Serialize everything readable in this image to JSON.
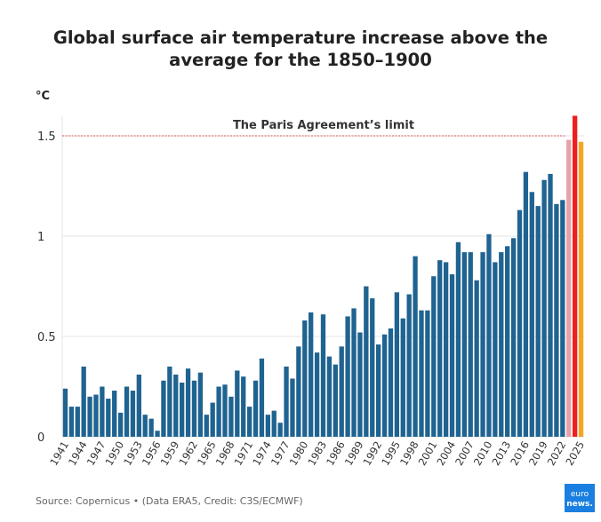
{
  "chart_data": {
    "type": "bar",
    "title": "Global surface air temperature increase above the average for the 1850–1900",
    "title_lines": [
      "Global surface air temperature increase above the",
      "average for the 1850–1900"
    ],
    "ylabel": "°C",
    "xlabel": "",
    "ylim": [
      0,
      1.6
    ],
    "yticks": [
      0,
      0.5,
      1,
      1.5
    ],
    "ytick_labels": [
      "0",
      "0.5",
      "1",
      "1.5"
    ],
    "grid": true,
    "x_start": 1941,
    "x_end": 2025,
    "xtick_step": 3,
    "values": [
      0.24,
      0.15,
      0.15,
      0.35,
      0.2,
      0.21,
      0.25,
      0.19,
      0.23,
      0.12,
      0.25,
      0.23,
      0.31,
      0.11,
      0.09,
      0.03,
      0.28,
      0.35,
      0.31,
      0.27,
      0.34,
      0.28,
      0.32,
      0.11,
      0.17,
      0.25,
      0.26,
      0.2,
      0.33,
      0.3,
      0.15,
      0.28,
      0.39,
      0.11,
      0.13,
      0.07,
      0.35,
      0.29,
      0.45,
      0.58,
      0.62,
      0.42,
      0.61,
      0.4,
      0.36,
      0.45,
      0.6,
      0.64,
      0.52,
      0.75,
      0.69,
      0.46,
      0.51,
      0.54,
      0.72,
      0.59,
      0.71,
      0.9,
      0.63,
      0.63,
      0.8,
      0.88,
      0.87,
      0.81,
      0.97,
      0.92,
      0.92,
      0.78,
      0.92,
      1.01,
      0.87,
      0.92,
      0.95,
      0.99,
      1.13,
      1.32,
      1.22,
      1.15,
      1.28,
      1.31,
      1.16,
      1.18,
      1.48,
      1.6,
      1.47
    ],
    "annotation": {
      "label": "The Paris Agreement’s limit",
      "value": 1.5
    },
    "colors": {
      "default": "#1f6391",
      "2023": "#e8a1a6",
      "2024": "#f01e1e",
      "2025": "#f6a623",
      "limit": "#d9534f"
    }
  },
  "footer": {
    "source": "Source: Copernicus • (Data ERA5, Credit: C3S/ECMWF)"
  },
  "logo": {
    "line1": "euro",
    "line2": "news."
  }
}
